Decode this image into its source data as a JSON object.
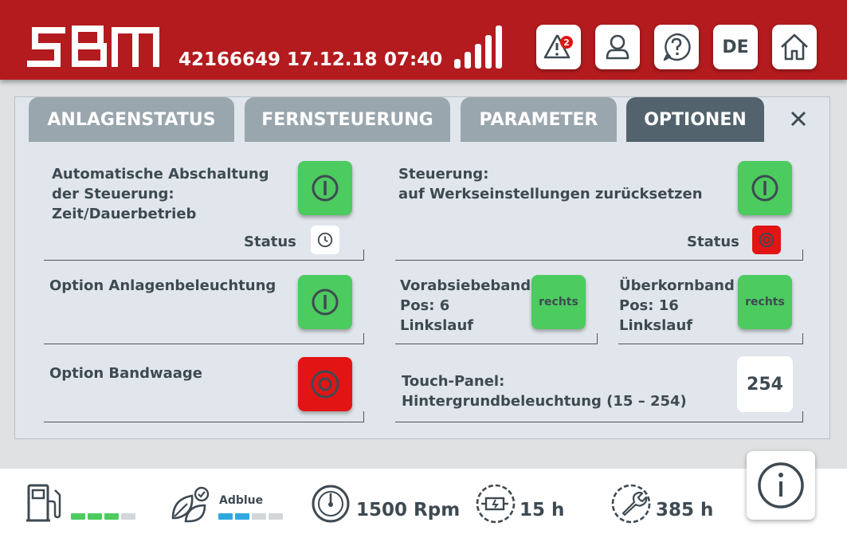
{
  "header": {
    "brand": "SBM",
    "machine_id": "42166649",
    "date": "17.12.18",
    "time": "07:40",
    "alert_count": "2",
    "language": "DE",
    "signal_bars": 5,
    "icons": [
      "warning-icon",
      "user-icon",
      "help-icon",
      "home-icon"
    ]
  },
  "tabs": [
    {
      "label": "ANLAGENSTATUS",
      "active": false
    },
    {
      "label": "FERNSTEUERUNG",
      "active": false
    },
    {
      "label": "PARAMETER",
      "active": false
    },
    {
      "label": "OPTIONEN",
      "active": true
    }
  ],
  "options": {
    "auto_shutdown": {
      "line1": "Automatische Abschaltung",
      "line2": "der Steuerung:",
      "line3": "Zeit/Dauerbetrieb",
      "status_label": "Status"
    },
    "reset": {
      "line1": "Steuerung:",
      "line2": "auf Werkseinstellungen zurücksetzen",
      "status_label": "Status"
    },
    "lighting": {
      "label": "Option Anlagenbeleuchtung"
    },
    "prescreen": {
      "line1": "Vorabsiebeband",
      "line2": "Pos: 6",
      "line3": "Linkslauf",
      "button": "rechts"
    },
    "oversize": {
      "line1": "Überkornband",
      "line2": "Pos: 16",
      "line3": "Linkslauf",
      "button": "rechts"
    },
    "weigher": {
      "label": "Option Bandwaage"
    },
    "touchpanel": {
      "line1": "Touch-Panel:",
      "line2": "Hintergrundbeleuchtung (15 – 254)",
      "value": "254"
    }
  },
  "footer": {
    "fuel_level": 0.75,
    "adblue_label": "Adblue",
    "adblue_level": 0.5,
    "rpm": "1500 Rpm",
    "engine_hours": "15 h",
    "service_hours": "385 h"
  },
  "colors": {
    "brand_red": "#b31b1e",
    "on_green": "#4ccb5f",
    "off_red": "#e31414",
    "tab_active": "#52636d",
    "tab_inactive": "#9aa6ae",
    "adblue": "#2ea8e0"
  }
}
